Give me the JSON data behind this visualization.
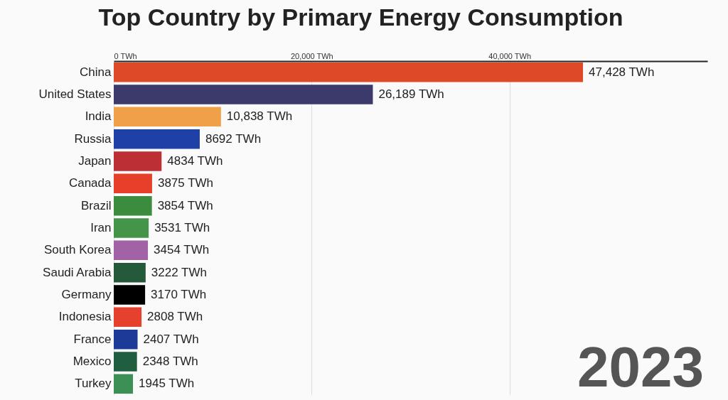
{
  "chart_data": {
    "type": "bar",
    "orientation": "horizontal",
    "title": "Top Country by Primary Energy Consumption",
    "categories": [
      "China",
      "United States",
      "India",
      "Russia",
      "Japan",
      "Canada",
      "Brazil",
      "Iran",
      "South Korea",
      "Saudi Arabia",
      "Germany",
      "Indonesia",
      "France",
      "Mexico",
      "Turkey"
    ],
    "values": [
      47428,
      26189,
      10838,
      8692,
      4834,
      3875,
      3854,
      3531,
      3454,
      3222,
      3170,
      2808,
      2407,
      2348,
      1945
    ],
    "colors": [
      "#dc4a28",
      "#3b3a6b",
      "#efa048",
      "#1f40a6",
      "#bb2f35",
      "#e6402b",
      "#3c8c3e",
      "#44954a",
      "#a163a6",
      "#245a3a",
      "#000000",
      "#e5412e",
      "#1c3a98",
      "#1f5f40",
      "#3c8f55"
    ],
    "value_labels": [
      "47,428 TWh",
      "26,189 TWh",
      "10,838 TWh",
      "8692 TWh",
      "4834 TWh",
      "3875 TWh",
      "3854 TWh",
      "3531 TWh",
      "3454 TWh",
      "3222 TWh",
      "3170 TWh",
      "2808 TWh",
      "2407 TWh",
      "2348 TWh",
      "1945 TWh"
    ],
    "xlim": [
      0,
      60000
    ],
    "xticks": [
      {
        "value": 0,
        "label": "0 TWh"
      },
      {
        "value": 20000,
        "label": "20,000 TWh"
      },
      {
        "value": 40000,
        "label": "40,000 TWh"
      }
    ],
    "grid": "x",
    "annotations": [
      "2023"
    ]
  }
}
